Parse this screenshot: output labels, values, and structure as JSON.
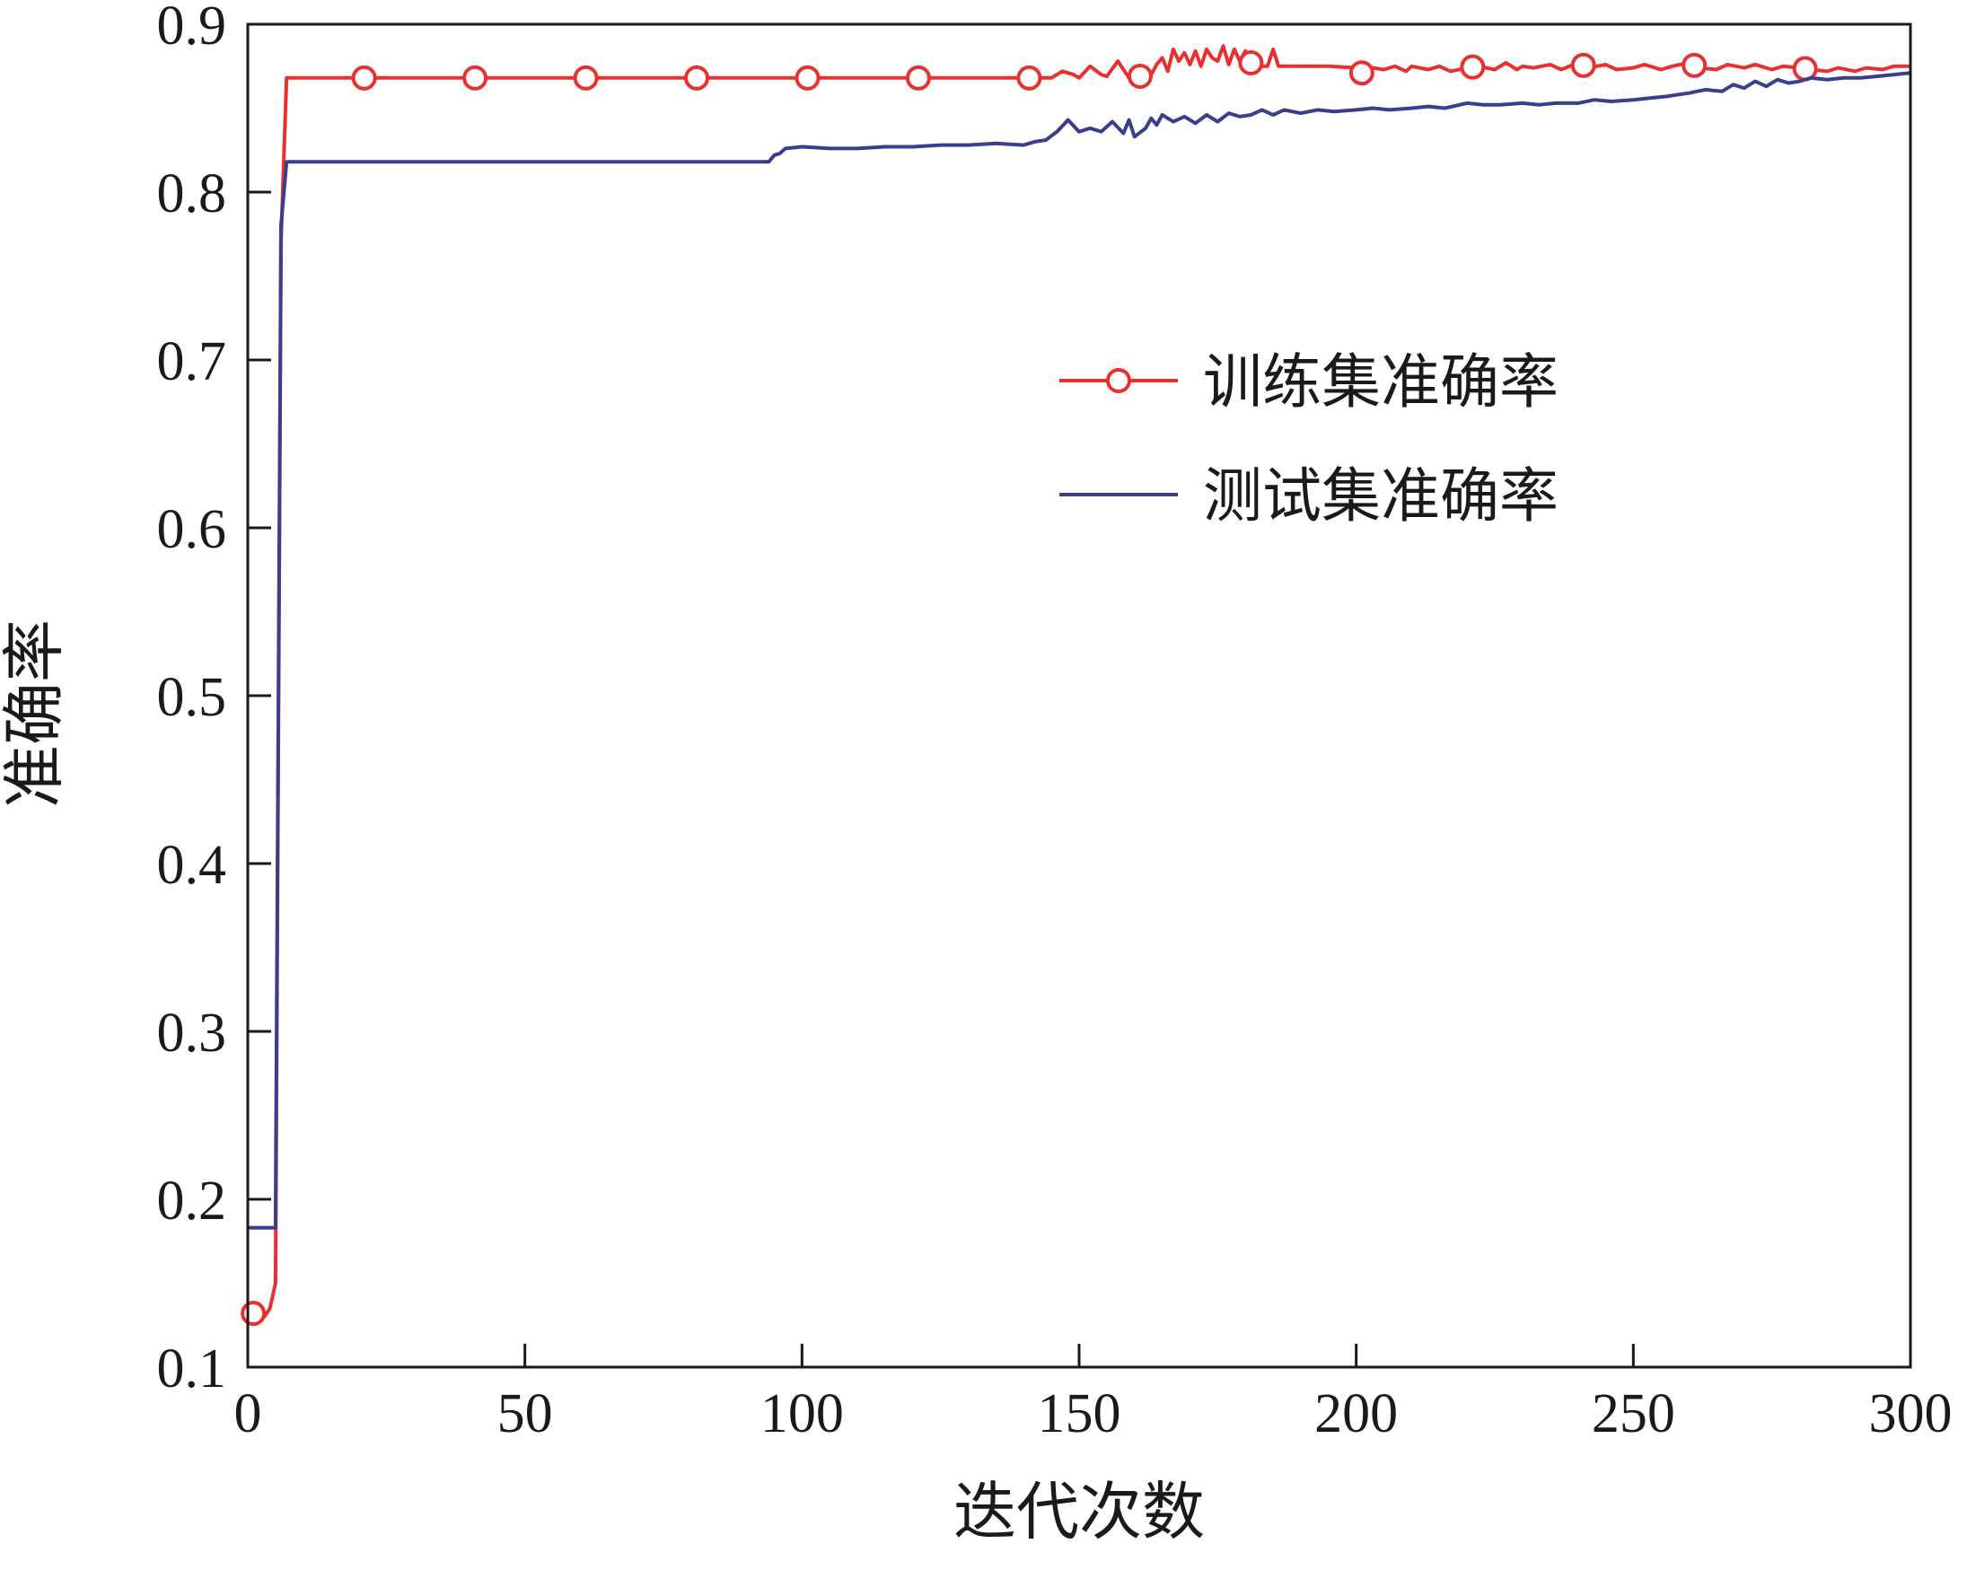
{
  "chart_data": {
    "type": "line",
    "xlabel": "迭代次数",
    "ylabel": "准确率",
    "xlim": [
      0,
      300
    ],
    "ylim": [
      0.1,
      0.9
    ],
    "xticks": [
      0,
      50,
      100,
      150,
      200,
      250,
      300
    ],
    "yticks": [
      0.1,
      0.2,
      0.3,
      0.4,
      0.5,
      0.6,
      0.7,
      0.8,
      0.9
    ],
    "grid": false,
    "legend_position": "center-right",
    "series": [
      {
        "name": "训练集准确率",
        "color": "#e8302f",
        "marker": "circle",
        "marker_every": 20,
        "points": [
          [
            1,
            0.132
          ],
          [
            2,
            0.13
          ],
          [
            3,
            0.13
          ],
          [
            4,
            0.135
          ],
          [
            5,
            0.15
          ],
          [
            6,
            0.77
          ],
          [
            7,
            0.868
          ],
          [
            10,
            0.868
          ],
          [
            20,
            0.868
          ],
          [
            40,
            0.868
          ],
          [
            60,
            0.868
          ],
          [
            80,
            0.868
          ],
          [
            100,
            0.868
          ],
          [
            120,
            0.868
          ],
          [
            140,
            0.868
          ],
          [
            145,
            0.868
          ],
          [
            147,
            0.872
          ],
          [
            149,
            0.87
          ],
          [
            150,
            0.868
          ],
          [
            152,
            0.875
          ],
          [
            154,
            0.87
          ],
          [
            155,
            0.869
          ],
          [
            157,
            0.878
          ],
          [
            159,
            0.868
          ],
          [
            160,
            0.872
          ],
          [
            161,
            0.869
          ],
          [
            162,
            0.872
          ],
          [
            163,
            0.87
          ],
          [
            164,
            0.876
          ],
          [
            165,
            0.88
          ],
          [
            166,
            0.872
          ],
          [
            167,
            0.885
          ],
          [
            168,
            0.878
          ],
          [
            169,
            0.883
          ],
          [
            170,
            0.876
          ],
          [
            171,
            0.884
          ],
          [
            172,
            0.875
          ],
          [
            173,
            0.885
          ],
          [
            174,
            0.88
          ],
          [
            175,
            0.878
          ],
          [
            176,
            0.887
          ],
          [
            177,
            0.876
          ],
          [
            178,
            0.885
          ],
          [
            179,
            0.878
          ],
          [
            180,
            0.884
          ],
          [
            181,
            0.877
          ],
          [
            182,
            0.875
          ],
          [
            184,
            0.875
          ],
          [
            185,
            0.885
          ],
          [
            186,
            0.875
          ],
          [
            190,
            0.875
          ],
          [
            195,
            0.875
          ],
          [
            200,
            0.874
          ],
          [
            201,
            0.871
          ],
          [
            203,
            0.874
          ],
          [
            205,
            0.873
          ],
          [
            207,
            0.875
          ],
          [
            209,
            0.872
          ],
          [
            210,
            0.875
          ],
          [
            213,
            0.873
          ],
          [
            215,
            0.875
          ],
          [
            217,
            0.872
          ],
          [
            220,
            0.874
          ],
          [
            222,
            0.875
          ],
          [
            225,
            0.873
          ],
          [
            227,
            0.877
          ],
          [
            229,
            0.873
          ],
          [
            230,
            0.875
          ],
          [
            232,
            0.874
          ],
          [
            235,
            0.876
          ],
          [
            237,
            0.873
          ],
          [
            240,
            0.877
          ],
          [
            242,
            0.874
          ],
          [
            245,
            0.876
          ],
          [
            247,
            0.873
          ],
          [
            250,
            0.874
          ],
          [
            252,
            0.876
          ],
          [
            255,
            0.873
          ],
          [
            257,
            0.875
          ],
          [
            260,
            0.877
          ],
          [
            262,
            0.874
          ],
          [
            265,
            0.873
          ],
          [
            267,
            0.876
          ],
          [
            270,
            0.874
          ],
          [
            272,
            0.876
          ],
          [
            275,
            0.873
          ],
          [
            277,
            0.875
          ],
          [
            280,
            0.874
          ],
          [
            282,
            0.873
          ],
          [
            285,
            0.872
          ],
          [
            287,
            0.874
          ],
          [
            290,
            0.872
          ],
          [
            292,
            0.874
          ],
          [
            295,
            0.873
          ],
          [
            297,
            0.875
          ],
          [
            300,
            0.875
          ]
        ]
      },
      {
        "name": "测试集准确率",
        "color": "#3a3e8c",
        "marker": "none",
        "points": [
          [
            0,
            0.183
          ],
          [
            4,
            0.183
          ],
          [
            5,
            0.183
          ],
          [
            6,
            0.78
          ],
          [
            7,
            0.818
          ],
          [
            10,
            0.818
          ],
          [
            30,
            0.818
          ],
          [
            60,
            0.818
          ],
          [
            90,
            0.818
          ],
          [
            94,
            0.818
          ],
          [
            95,
            0.822
          ],
          [
            96,
            0.823
          ],
          [
            97,
            0.826
          ],
          [
            100,
            0.827
          ],
          [
            105,
            0.826
          ],
          [
            110,
            0.826
          ],
          [
            115,
            0.827
          ],
          [
            120,
            0.827
          ],
          [
            125,
            0.828
          ],
          [
            130,
            0.828
          ],
          [
            135,
            0.829
          ],
          [
            140,
            0.828
          ],
          [
            142,
            0.83
          ],
          [
            144,
            0.831
          ],
          [
            146,
            0.836
          ],
          [
            148,
            0.843
          ],
          [
            150,
            0.836
          ],
          [
            152,
            0.838
          ],
          [
            154,
            0.836
          ],
          [
            156,
            0.842
          ],
          [
            158,
            0.835
          ],
          [
            159,
            0.843
          ],
          [
            160,
            0.833
          ],
          [
            162,
            0.838
          ],
          [
            163,
            0.844
          ],
          [
            164,
            0.84
          ],
          [
            165,
            0.846
          ],
          [
            167,
            0.842
          ],
          [
            169,
            0.845
          ],
          [
            171,
            0.841
          ],
          [
            173,
            0.846
          ],
          [
            175,
            0.842
          ],
          [
            177,
            0.847
          ],
          [
            179,
            0.845
          ],
          [
            181,
            0.846
          ],
          [
            183,
            0.849
          ],
          [
            185,
            0.846
          ],
          [
            187,
            0.849
          ],
          [
            190,
            0.847
          ],
          [
            193,
            0.849
          ],
          [
            196,
            0.848
          ],
          [
            200,
            0.849
          ],
          [
            203,
            0.85
          ],
          [
            206,
            0.849
          ],
          [
            210,
            0.85
          ],
          [
            213,
            0.851
          ],
          [
            216,
            0.85
          ],
          [
            220,
            0.853
          ],
          [
            223,
            0.852
          ],
          [
            226,
            0.852
          ],
          [
            230,
            0.853
          ],
          [
            233,
            0.852
          ],
          [
            236,
            0.853
          ],
          [
            240,
            0.853
          ],
          [
            243,
            0.855
          ],
          [
            246,
            0.854
          ],
          [
            250,
            0.855
          ],
          [
            253,
            0.856
          ],
          [
            256,
            0.857
          ],
          [
            260,
            0.859
          ],
          [
            263,
            0.861
          ],
          [
            266,
            0.86
          ],
          [
            268,
            0.864
          ],
          [
            270,
            0.862
          ],
          [
            272,
            0.866
          ],
          [
            274,
            0.863
          ],
          [
            276,
            0.867
          ],
          [
            278,
            0.865
          ],
          [
            280,
            0.866
          ],
          [
            282,
            0.868
          ],
          [
            285,
            0.867
          ],
          [
            288,
            0.868
          ],
          [
            291,
            0.868
          ],
          [
            294,
            0.869
          ],
          [
            297,
            0.87
          ],
          [
            300,
            0.871
          ]
        ]
      }
    ]
  }
}
